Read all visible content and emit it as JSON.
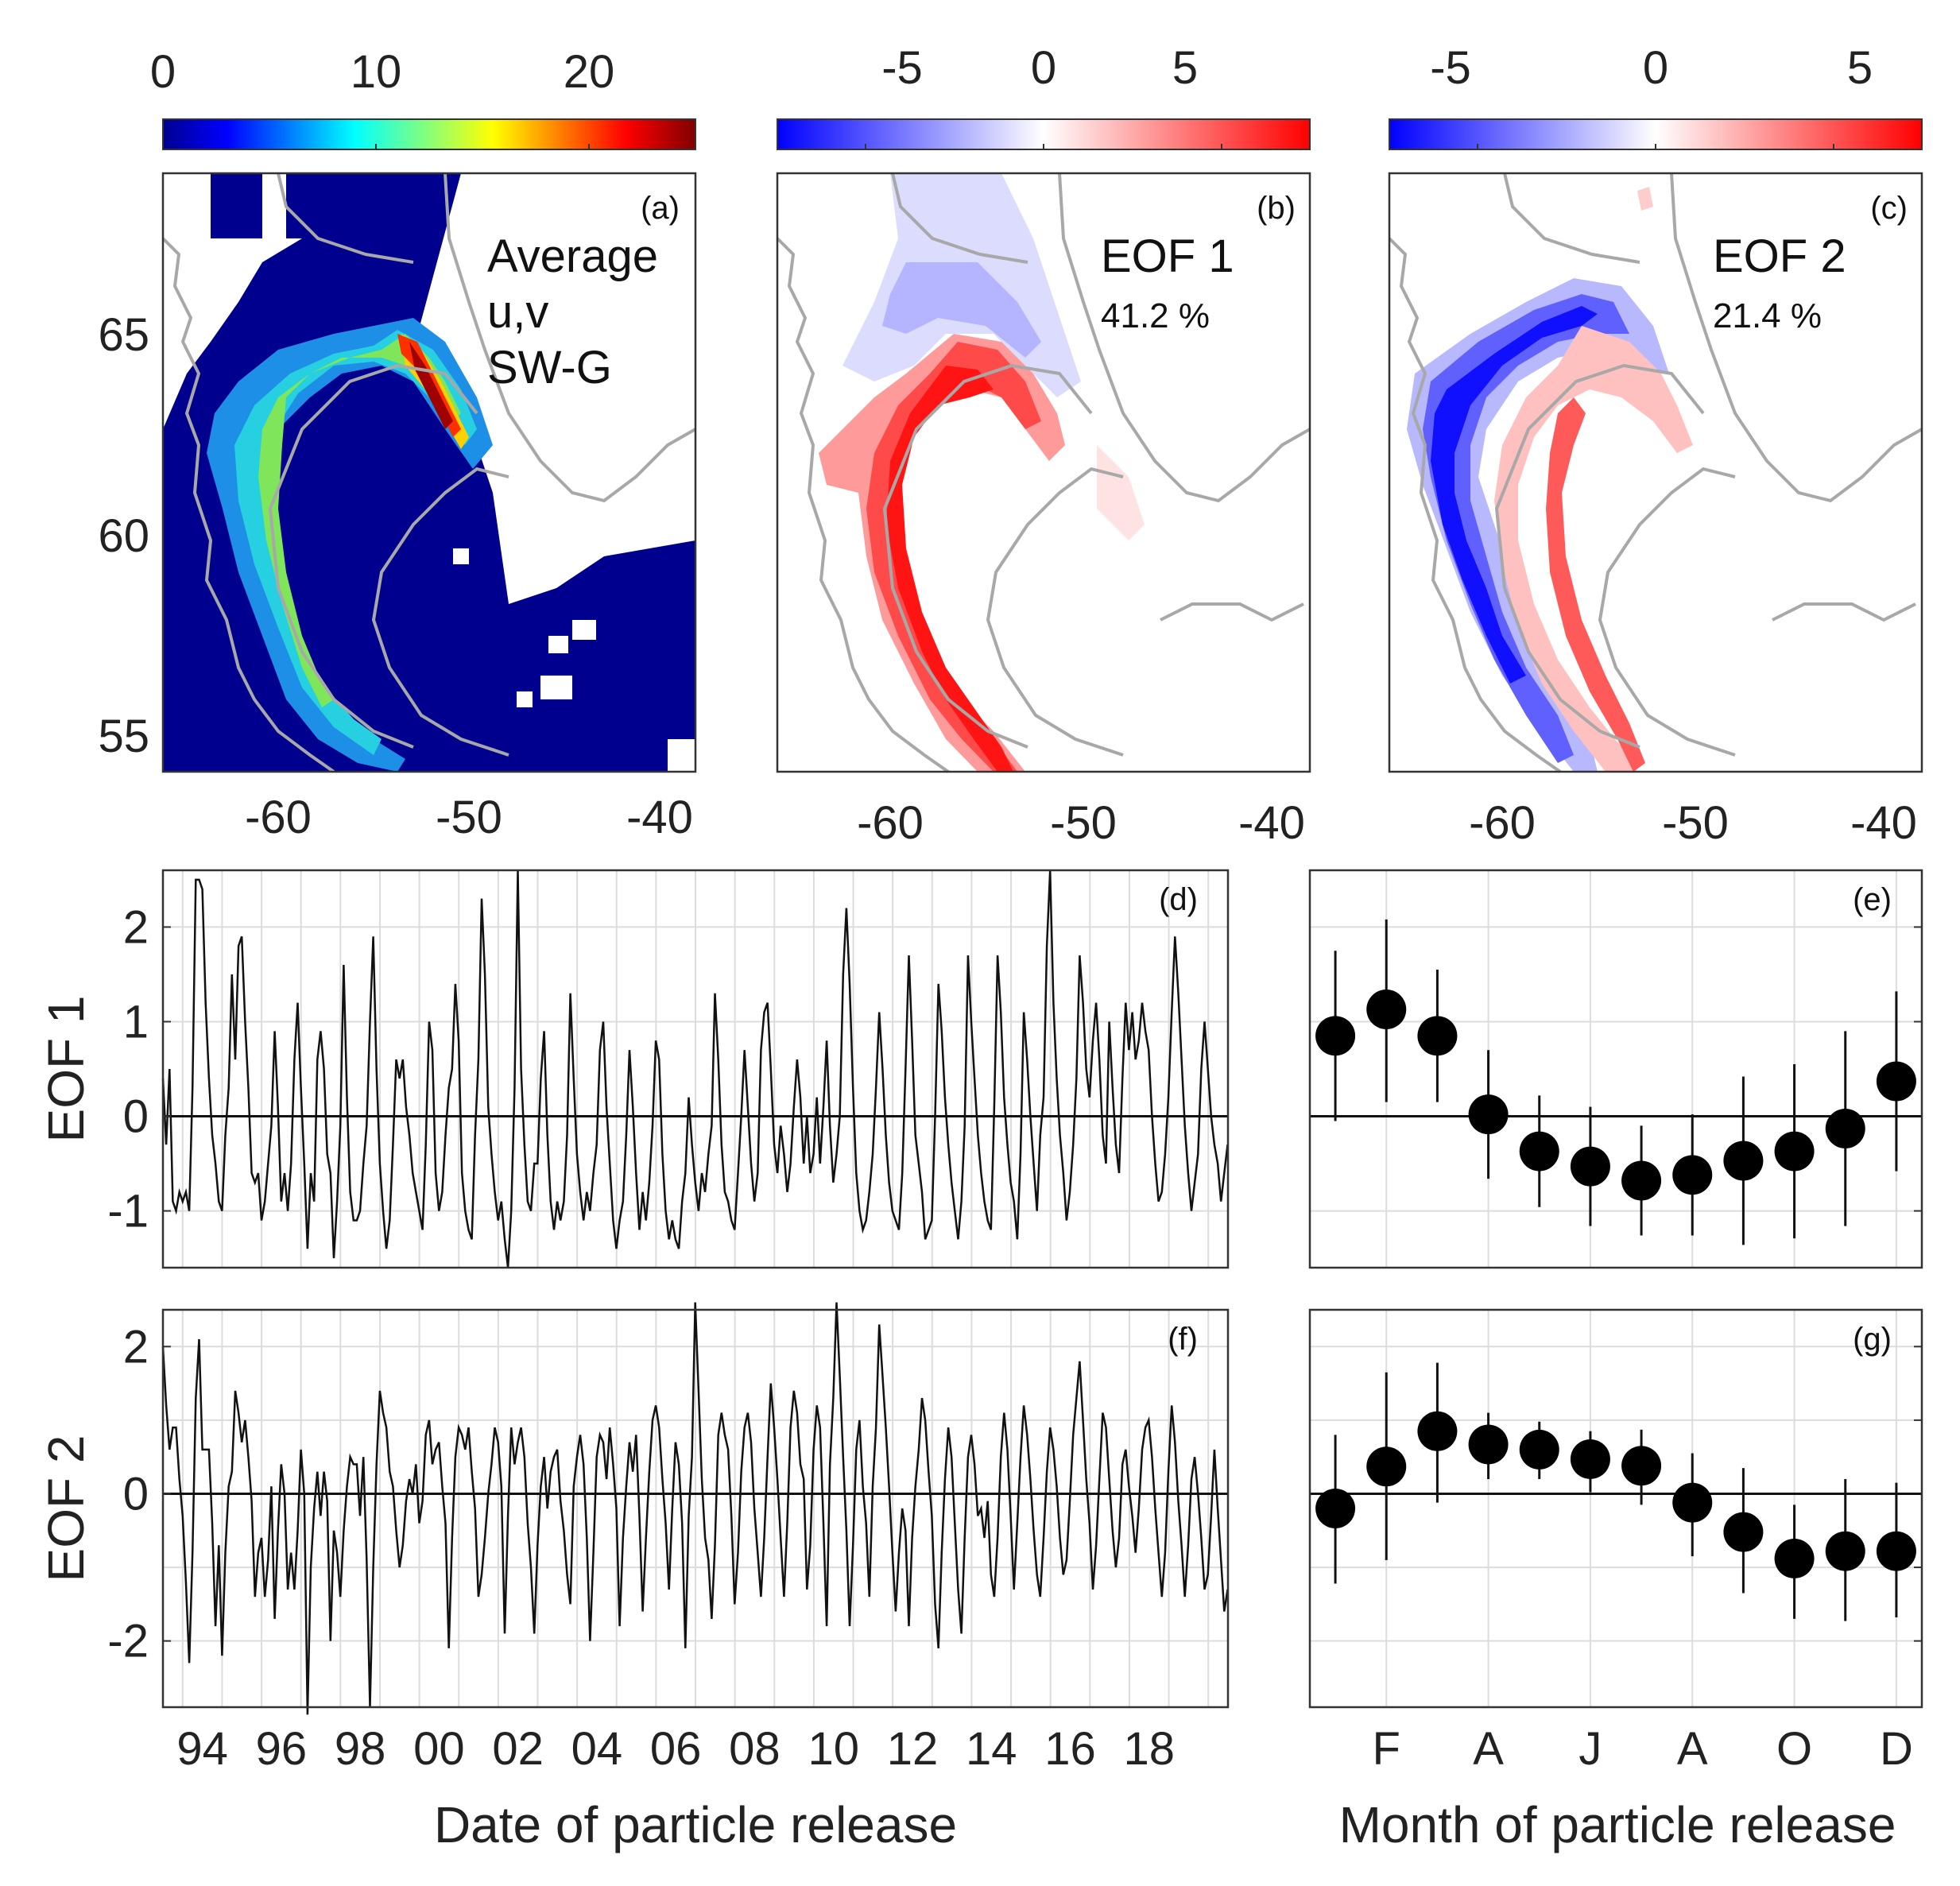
{
  "chart_data": [
    {
      "id": "a",
      "type": "heatmap",
      "panel_label": "(a)",
      "annotation": [
        "Average",
        "u,v",
        "SW-G"
      ],
      "colorbar": {
        "colormap": "jet",
        "range": [
          0,
          25
        ],
        "ticks": [
          0,
          10,
          20
        ],
        "tick_labels": [
          "0",
          "10",
          "20"
        ]
      },
      "xlim": [
        -66,
        -38
      ],
      "ylim": [
        54,
        69
      ],
      "xticks": [
        -60,
        -50,
        -40
      ],
      "xtick_labels": [
        "-60",
        "-50",
        "-40"
      ],
      "yticks": [
        55,
        60,
        65
      ],
      "ytick_labels": [
        "55",
        "60",
        "65"
      ]
    },
    {
      "id": "b",
      "type": "heatmap",
      "panel_label": "(b)",
      "annotation": [
        "EOF 1",
        "41.2 %"
      ],
      "colorbar": {
        "colormap": "blue-white-red",
        "range": [
          -7.5,
          7.5
        ],
        "ticks": [
          -5,
          0,
          5
        ],
        "tick_labels": [
          "-5",
          "0",
          "5"
        ]
      },
      "xlim": [
        -66,
        -38
      ],
      "ylim": [
        54,
        69
      ],
      "xticks": [
        -60,
        -50,
        -40
      ],
      "xtick_labels": [
        "-60",
        "-50",
        "-40"
      ]
    },
    {
      "id": "c",
      "type": "heatmap",
      "panel_label": "(c)",
      "annotation": [
        "EOF 2",
        "21.4 %"
      ],
      "colorbar": {
        "colormap": "blue-white-red",
        "range": [
          -7.5,
          7.5
        ],
        "ticks": [
          -5,
          0,
          5
        ],
        "tick_labels": [
          "-5",
          "0",
          "5"
        ]
      },
      "xlim": [
        -66,
        -38
      ],
      "ylim": [
        54,
        69
      ],
      "xticks": [
        -60,
        -50,
        -40
      ],
      "xtick_labels": [
        "-60",
        "-50",
        "-40"
      ]
    },
    {
      "id": "d",
      "type": "line",
      "panel_label": "(d)",
      "ylabel": "EOF 1",
      "xlim": [
        1993,
        2020
      ],
      "ylim": [
        -1.6,
        2.6
      ],
      "xticks": [
        1994,
        1996,
        1998,
        2000,
        2002,
        2004,
        2006,
        2008,
        2010,
        2012,
        2014,
        2016,
        2018
      ],
      "yticks": [
        -1,
        0,
        1,
        2
      ],
      "ytick_labels": [
        "-1",
        "0",
        "1",
        "2"
      ],
      "grid": true,
      "x_start": 1993.0,
      "x_step": 0.0833,
      "y": [
        0.4,
        -0.3,
        0.5,
        -0.9,
        -1.0,
        -0.8,
        -0.9,
        -0.8,
        -1.0,
        0.3,
        2.5,
        2.5,
        2.4,
        1.2,
        0.4,
        -0.2,
        -0.5,
        -0.9,
        -1.0,
        -0.2,
        0.3,
        1.5,
        0.6,
        1.8,
        1.9,
        1.0,
        0.3,
        -0.6,
        -0.7,
        -0.6,
        -1.1,
        -0.9,
        -0.5,
        -0.1,
        0.9,
        0.1,
        -0.9,
        -0.6,
        -1.0,
        -0.5,
        0.6,
        1.2,
        0.3,
        -0.5,
        -1.4,
        -0.6,
        -0.9,
        0.6,
        0.9,
        0.5,
        -0.4,
        -0.6,
        -1.5,
        -0.9,
        -0.1,
        1.6,
        0.2,
        -0.8,
        -1.1,
        -1.1,
        -1.0,
        -0.5,
        -0.1,
        1.0,
        1.9,
        0.5,
        -0.5,
        -1.0,
        -1.4,
        -1.1,
        -0.3,
        0.6,
        0.4,
        0.6,
        0.1,
        -0.2,
        -0.6,
        -0.8,
        -1.0,
        -1.2,
        -0.3,
        1.0,
        0.7,
        -0.6,
        -1.0,
        -0.8,
        -0.2,
        0.3,
        0.5,
        1.4,
        0.8,
        -0.6,
        -1.0,
        -1.2,
        -1.3,
        -0.2,
        0.6,
        2.3,
        1.5,
        0.1,
        -0.4,
        -0.8,
        -1.1,
        -0.9,
        -1.3,
        -1.6,
        -1.0,
        0.3,
        2.6,
        0.5,
        -0.3,
        -0.9,
        -1.0,
        -0.5,
        -0.5,
        0.4,
        0.9,
        -0.2,
        -0.9,
        -1.2,
        -0.9,
        -1.1,
        -0.9,
        -0.2,
        1.3,
        0.4,
        -0.4,
        -0.8,
        -1.1,
        -0.8,
        -1.0,
        -0.6,
        -0.3,
        0.7,
        1.0,
        0.1,
        -0.5,
        -1.1,
        -1.4,
        -1.1,
        -0.9,
        -0.2,
        0.7,
        0.1,
        -0.6,
        -1.2,
        -0.8,
        -1.1,
        -0.7,
        -0.1,
        0.8,
        0.6,
        -0.4,
        -1.0,
        -1.3,
        -1.1,
        -1.3,
        -1.4,
        -0.9,
        -0.6,
        0.2,
        -0.3,
        -0.7,
        -1.0,
        -0.6,
        -0.8,
        -0.4,
        -0.1,
        1.3,
        0.6,
        -0.3,
        -0.8,
        -0.9,
        -1.1,
        -1.2,
        -0.6,
        0.0,
        0.7,
        0.1,
        -0.5,
        -0.9,
        -0.6,
        0.7,
        1.1,
        1.2,
        0.5,
        -0.3,
        -0.6,
        -0.1,
        -0.4,
        -0.8,
        -0.5,
        0.1,
        0.6,
        0.2,
        -0.5,
        0.0,
        -0.6,
        -0.4,
        0.2,
        -0.5,
        0.1,
        0.8,
        -0.1,
        -0.7,
        -0.4,
        0.0,
        1.5,
        2.2,
        1.4,
        0.3,
        -0.6,
        -1.0,
        -1.2,
        -1.1,
        -0.8,
        -0.4,
        0.3,
        1.1,
        0.5,
        -0.2,
        -0.7,
        -1.0,
        -1.1,
        -1.2,
        -0.6,
        0.5,
        1.7,
        0.8,
        -0.2,
        -0.5,
        -0.8,
        -1.3,
        -1.2,
        -1.1,
        0.0,
        1.4,
        0.9,
        0.2,
        -0.3,
        -0.7,
        -1.0,
        -1.3,
        -0.9,
        -0.1,
        1.7,
        1.0,
        0.4,
        -0.2,
        -0.6,
        -0.9,
        -1.1,
        -1.2,
        0.1,
        1.7,
        1.1,
        0.2,
        -0.3,
        -0.7,
        -0.9,
        -1.3,
        -0.4,
        1.1,
        0.6,
        0.0,
        -0.5,
        -1.0,
        -0.2,
        0.2,
        1.8,
        2.6,
        1.2,
        0.4,
        -0.2,
        -0.6,
        -1.1,
        -0.8,
        -0.3,
        0.4,
        1.7,
        1.2,
        0.5,
        0.2,
        0.8,
        1.2,
        0.6,
        -0.2,
        -0.5,
        1.0,
        0.3,
        -0.3,
        -0.6,
        0.4,
        1.2,
        0.7,
        1.1,
        0.6,
        0.8,
        1.2,
        0.9,
        0.7,
        0.0,
        -0.5,
        -0.9,
        -0.8,
        -0.4,
        0.2,
        1.1,
        1.9,
        1.3,
        0.6,
        -0.1,
        -0.6,
        -1.0,
        -0.7,
        -0.4,
        0.5,
        1.0,
        0.5,
        0.0,
        -0.3,
        -0.5,
        -0.9,
        -0.6,
        -0.3,
        -0.7,
        -0.2,
        1.8,
        1.0,
        0.3,
        -0.2,
        -0.8,
        -0.5,
        -0.4,
        -0.9,
        1.3
      ]
    },
    {
      "id": "e",
      "type": "scatter",
      "panel_label": "(e)",
      "xlim": [
        0.5,
        12.5
      ],
      "ylim": [
        -1.6,
        2.6
      ],
      "x": [
        1,
        2,
        3,
        4,
        5,
        6,
        7,
        8,
        9,
        10,
        11,
        12
      ],
      "y": [
        0.85,
        1.13,
        0.85,
        0.02,
        -0.37,
        -0.53,
        -0.68,
        -0.62,
        -0.47,
        -0.37,
        -0.13,
        0.37
      ],
      "y_upper": [
        1.75,
        2.08,
        1.55,
        0.7,
        0.22,
        0.1,
        -0.1,
        0.02,
        0.42,
        0.55,
        0.9,
        1.32
      ],
      "y_lower": [
        -0.05,
        0.15,
        0.15,
        -0.66,
        -0.96,
        -1.16,
        -1.26,
        -1.26,
        -1.36,
        -1.29,
        -1.16,
        -0.58
      ],
      "grid": true
    },
    {
      "id": "f",
      "type": "line",
      "panel_label": "(f)",
      "ylabel": "EOF 2",
      "xlabel": "Date of particle release",
      "xlim": [
        1993,
        2020
      ],
      "ylim": [
        -2.9,
        2.5
      ],
      "xticks": [
        1994,
        1996,
        1998,
        2000,
        2002,
        2004,
        2006,
        2008,
        2010,
        2012,
        2014,
        2016,
        2018
      ],
      "xtick_labels": [
        "94",
        "96",
        "98",
        "00",
        "02",
        "04",
        "06",
        "08",
        "10",
        "12",
        "14",
        "16",
        "18"
      ],
      "yticks": [
        -2,
        0,
        2
      ],
      "ytick_labels": [
        "-2",
        "0",
        "2"
      ],
      "grid": true,
      "x_start": 1993.0,
      "x_step": 0.0833,
      "y": [
        2.0,
        1.2,
        0.6,
        0.9,
        0.9,
        0.2,
        -0.3,
        -1.2,
        -2.3,
        -0.8,
        1.3,
        2.1,
        0.6,
        0.6,
        0.6,
        -0.4,
        -1.8,
        -0.7,
        -2.2,
        -0.8,
        0.1,
        0.3,
        1.4,
        1.1,
        0.7,
        1.0,
        0.5,
        -0.1,
        -1.4,
        -0.8,
        -0.6,
        -1.4,
        -0.9,
        0.1,
        -1.7,
        -0.5,
        0.4,
        0.0,
        -1.3,
        -0.8,
        -1.3,
        -0.5,
        0.6,
        0.0,
        -3.0,
        -1.0,
        -0.2,
        0.3,
        -0.3,
        0.3,
        -0.1,
        -2.0,
        -0.5,
        -0.8,
        -1.4,
        -0.5,
        0.1,
        0.5,
        0.4,
        0.4,
        -0.3,
        0.5,
        -0.9,
        -2.9,
        -1.0,
        0.4,
        1.4,
        1.1,
        0.9,
        0.3,
        0.1,
        -0.5,
        -1.0,
        -0.7,
        -0.1,
        0.2,
        0.0,
        0.4,
        -0.4,
        -0.1,
        0.8,
        1.0,
        0.4,
        0.6,
        0.7,
        0.1,
        -0.4,
        -2.1,
        -0.6,
        0.5,
        0.9,
        0.8,
        0.6,
        0.9,
        0.3,
        -0.2,
        -1.4,
        -1.1,
        -0.6,
        0.0,
        0.4,
        0.9,
        0.7,
        0.1,
        -1.9,
        -0.3,
        0.9,
        0.4,
        0.7,
        0.9,
        0.5,
        -0.4,
        -1.0,
        -1.9,
        -0.7,
        0.1,
        0.5,
        -0.2,
        0.3,
        0.5,
        0.6,
        -0.1,
        -0.5,
        -1.1,
        -1.5,
        0.1,
        0.5,
        0.8,
        0.4,
        -0.6,
        -2.0,
        -0.8,
        0.5,
        0.8,
        0.7,
        0.2,
        0.9,
        0.4,
        -0.2,
        -1.8,
        -0.6,
        0.1,
        0.7,
        0.3,
        0.8,
        -0.3,
        -1.6,
        -0.6,
        0.3,
        1.0,
        1.2,
        0.9,
        0.2,
        -0.4,
        -1.3,
        -0.2,
        0.7,
        0.4,
        -0.4,
        -2.1,
        -0.3,
        0.5,
        2.6,
        1.4,
        0.2,
        -0.6,
        -0.9,
        -1.7,
        -0.7,
        0.8,
        1.1,
        0.8,
        0.6,
        -0.3,
        -1.5,
        -0.8,
        0.3,
        0.9,
        1.1,
        0.7,
        -0.2,
        -0.8,
        -1.4,
        -0.6,
        0.5,
        1.5,
        0.9,
        0.2,
        -0.6,
        -1.4,
        -0.4,
        0.9,
        1.4,
        1.1,
        0.4,
        0.2,
        -1.3,
        -0.7,
        0.6,
        1.2,
        0.9,
        -0.4,
        -1.8,
        0.4,
        1.3,
        2.6,
        1.6,
        0.5,
        -0.5,
        -1.8,
        -0.7,
        0.6,
        1.0,
        0.1,
        -0.4,
        -1.4,
        0.1,
        0.9,
        2.3,
        1.6,
        0.9,
        0.1,
        -0.8,
        -1.6,
        -0.8,
        -0.2,
        -0.5,
        -1.8,
        -0.6,
        0.1,
        0.6,
        1.3,
        1.0,
        0.3,
        -0.3,
        -1.5,
        -2.1,
        -0.8,
        0.2,
        0.9,
        0.5,
        -0.4,
        -1.3,
        -1.9,
        -0.6,
        0.5,
        0.8,
        0.4,
        -0.3,
        -0.2,
        -0.6,
        -0.1,
        -1.1,
        -1.4,
        -0.6,
        0.5,
        1.1,
        0.6,
        -0.3,
        -1.3,
        -0.4,
        0.5,
        1.2,
        0.8,
        0.2,
        -0.5,
        -1.1,
        -1.4,
        -0.6,
        0.3,
        0.9,
        0.6,
        0.1,
        -0.6,
        -1.1,
        -0.9,
        -0.1,
        0.8,
        1.3,
        1.8,
        1.0,
        0.2,
        -0.4,
        -1.3,
        -0.7,
        0.2,
        1.1,
        0.9,
        0.2,
        -0.5,
        -1.0,
        -0.6,
        0.4,
        0.6,
        0.1,
        -0.3,
        -0.8,
        -0.2,
        0.6,
        0.9,
        1.0,
        0.5,
        -0.2,
        -0.8,
        -1.4,
        -0.8,
        0.3,
        1.2,
        0.7,
        -0.1,
        -0.7,
        -1.4,
        -0.7,
        0.2,
        0.5,
        0.0,
        -0.6,
        -1.3,
        -1.1,
        -0.3,
        0.6,
        -0.2,
        -0.9,
        -1.6,
        -1.3,
        -0.2,
        0.6,
        0.3,
        -0.5,
        -1.4,
        -1.3,
        -1.2,
        -1.7
      ]
    },
    {
      "id": "g",
      "type": "scatter",
      "panel_label": "(g)",
      "xlabel": "Month of particle release",
      "xlim": [
        0.5,
        12.5
      ],
      "ylim": [
        -2.9,
        2.5
      ],
      "xticks": [
        2,
        4,
        6,
        8,
        10,
        12
      ],
      "xtick_labels": [
        "F",
        "A",
        "J",
        "A",
        "O",
        "D"
      ],
      "x": [
        1,
        2,
        3,
        4,
        5,
        6,
        7,
        8,
        9,
        10,
        11,
        12
      ],
      "y": [
        -0.2,
        0.37,
        0.85,
        0.67,
        0.6,
        0.47,
        0.38,
        -0.12,
        -0.52,
        -0.88,
        -0.78,
        -0.78
      ],
      "y_upper": [
        0.8,
        1.65,
        1.78,
        1.1,
        0.98,
        0.85,
        0.87,
        0.55,
        0.35,
        -0.15,
        0.2,
        0.15
      ],
      "y_lower": [
        -1.22,
        -0.9,
        -0.12,
        0.2,
        0.2,
        0.02,
        -0.15,
        -0.85,
        -1.35,
        -1.7,
        -1.73,
        -1.68
      ],
      "grid": true
    }
  ]
}
